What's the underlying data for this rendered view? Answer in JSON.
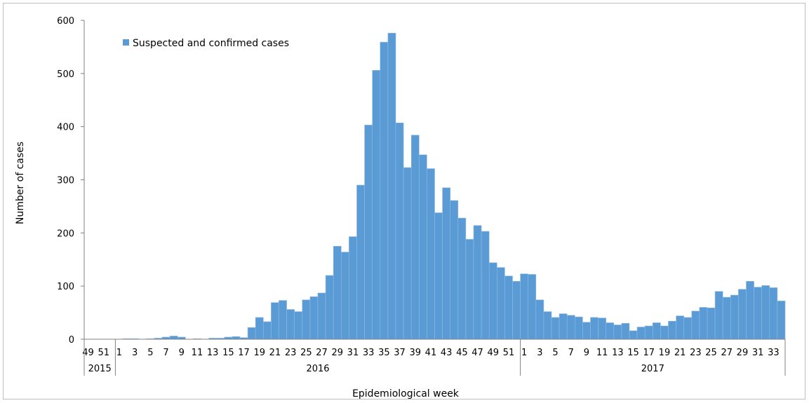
{
  "chart_data": {
    "type": "bar",
    "xlabel": "Epidemiological week",
    "ylabel": "Number of cases",
    "ylim": [
      0,
      600
    ],
    "yticks": [
      0,
      100,
      200,
      300,
      400,
      500,
      600
    ],
    "legend": {
      "position": "top-left"
    },
    "grid": false,
    "bar_color": "#5b9bd5",
    "series": [
      {
        "name": "Suspected and confirmed cases",
        "values": [
          0,
          0,
          0,
          0,
          0,
          1,
          1,
          0,
          1,
          2,
          4,
          6,
          4,
          0,
          1,
          0,
          2,
          2,
          4,
          5,
          3,
          22,
          41,
          33,
          69,
          73,
          56,
          52,
          74,
          80,
          87,
          120,
          175,
          164,
          193,
          290,
          403,
          506,
          559,
          576,
          407,
          323,
          384,
          347,
          321,
          238,
          285,
          261,
          228,
          188,
          214,
          203,
          144,
          135,
          119,
          109,
          123,
          122,
          74,
          52,
          41,
          48,
          45,
          42,
          32,
          41,
          40,
          31,
          27,
          30,
          16,
          23,
          25,
          31,
          25,
          34,
          44,
          41,
          53,
          60,
          59,
          90,
          79,
          83,
          94,
          109,
          98,
          101,
          97,
          72
        ]
      }
    ],
    "weeks": [
      49,
      50,
      51,
      52,
      1,
      2,
      3,
      4,
      5,
      6,
      7,
      8,
      9,
      10,
      11,
      12,
      13,
      14,
      15,
      16,
      17,
      18,
      19,
      20,
      21,
      22,
      23,
      24,
      25,
      26,
      27,
      28,
      29,
      30,
      31,
      32,
      33,
      34,
      35,
      36,
      37,
      38,
      39,
      40,
      41,
      42,
      43,
      44,
      45,
      46,
      47,
      48,
      49,
      50,
      51,
      52,
      1,
      2,
      3,
      4,
      5,
      6,
      7,
      8,
      9,
      10,
      11,
      12,
      13,
      14,
      15,
      16,
      17,
      18,
      19,
      20,
      21,
      22,
      23,
      24,
      25,
      26,
      27,
      28,
      29,
      30,
      31,
      32,
      33,
      34
    ],
    "week_labels": [
      "49",
      "",
      "51",
      "",
      "1",
      "",
      "3",
      "",
      "5",
      "",
      "7",
      "",
      "9",
      "",
      "11",
      "",
      "13",
      "",
      "15",
      "",
      "17",
      "",
      "19",
      "",
      "21",
      "",
      "23",
      "",
      "25",
      "",
      "27",
      "",
      "29",
      "",
      "31",
      "",
      "33",
      "",
      "35",
      "",
      "37",
      "",
      "39",
      "",
      "41",
      "",
      "43",
      "",
      "45",
      "",
      "47",
      "",
      "49",
      "",
      "51",
      "",
      "1",
      "",
      "3",
      "",
      "5",
      "",
      "7",
      "",
      "9",
      "",
      "11",
      "",
      "13",
      "",
      "15",
      "",
      "17",
      "",
      "19",
      "",
      "21",
      "",
      "23",
      "",
      "25",
      "",
      "27",
      "",
      "29",
      "",
      "31",
      "",
      "33",
      ""
    ],
    "years": [
      {
        "label": "2015",
        "start": 0,
        "end": 4
      },
      {
        "label": "2016",
        "start": 4,
        "end": 56
      },
      {
        "label": "2017",
        "start": 56,
        "end": 90
      }
    ]
  }
}
